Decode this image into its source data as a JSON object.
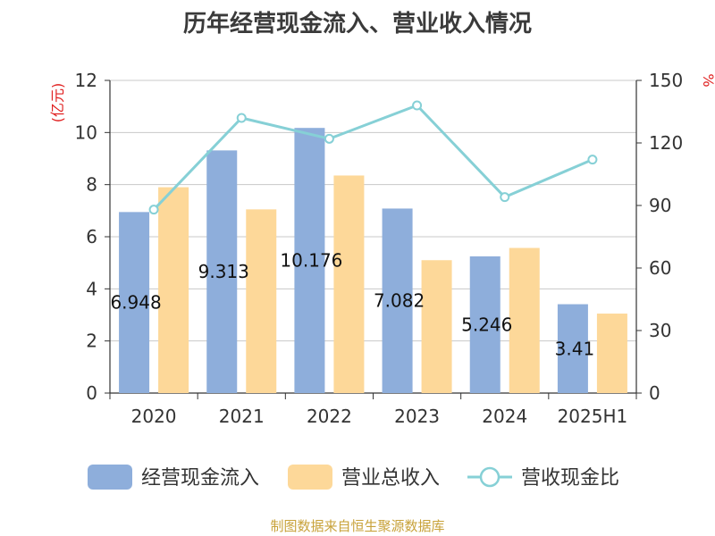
{
  "chart_data": {
    "type": "bar",
    "title": "历年经营现金流入、营业收入情况",
    "categories": [
      "2020",
      "2021",
      "2022",
      "2023",
      "2024",
      "2025H1"
    ],
    "series": [
      {
        "name": "经营现金流入",
        "type": "bar",
        "axis": "left",
        "color": "#8eaedb",
        "values": [
          6.948,
          9.313,
          10.176,
          7.082,
          5.246,
          3.41
        ],
        "labels": [
          "6.948",
          "9.313",
          "10.176",
          "7.082",
          "5.246",
          "3.41"
        ]
      },
      {
        "name": "营业总收入",
        "type": "bar",
        "axis": "left",
        "color": "#fdd899",
        "values": [
          7.9,
          7.05,
          8.35,
          5.1,
          5.57,
          3.05
        ]
      },
      {
        "name": "营收现金比",
        "type": "line",
        "axis": "right",
        "color": "#86d0d6",
        "values": [
          88,
          132,
          122,
          138,
          94,
          112
        ]
      }
    ],
    "y_left": {
      "unit": "(亿元)",
      "ylim": [
        0,
        12
      ],
      "ticks": [
        "0",
        "2",
        "4",
        "6",
        "8",
        "10",
        "12"
      ]
    },
    "y_right": {
      "unit": "%",
      "ylim": [
        0,
        150
      ],
      "ticks": [
        "0",
        "30",
        "60",
        "90",
        "120",
        "150"
      ]
    },
    "grid": true,
    "legend_position": "bottom"
  },
  "source": "制图数据来自恒生聚源数据库"
}
